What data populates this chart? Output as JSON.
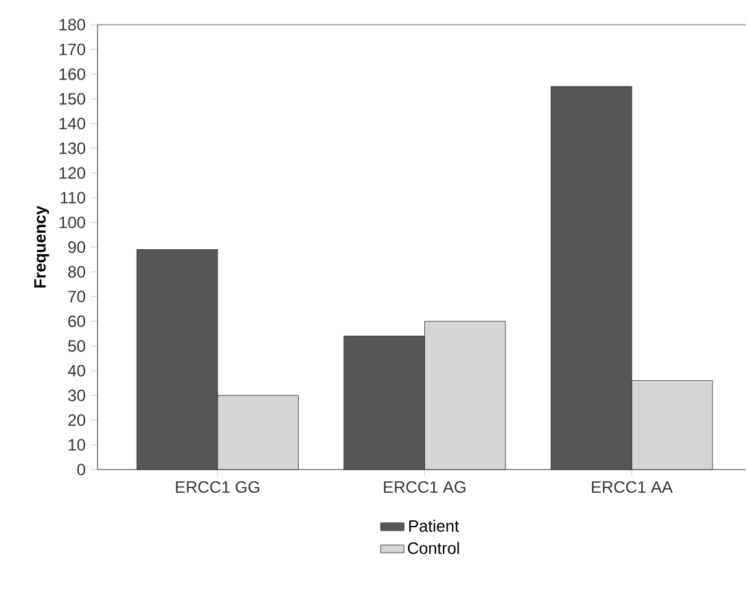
{
  "chart_data": {
    "type": "bar",
    "ylabel": "Frequency",
    "categories": [
      "ERCC1 GG",
      "ERCC1 AG",
      "ERCC1 AA"
    ],
    "series": [
      {
        "name": "Patient",
        "color": "#555658",
        "values": [
          89,
          54,
          155
        ]
      },
      {
        "name": "Control",
        "color": "#d4d5d7",
        "values": [
          30,
          60,
          36
        ]
      }
    ],
    "ylim": [
      0,
      180
    ],
    "yticks": [
      0,
      10,
      20,
      30,
      40,
      50,
      60,
      70,
      80,
      90,
      100,
      110,
      120,
      130,
      140,
      150,
      160,
      170,
      180
    ],
    "grid": false,
    "legend": "bottom"
  }
}
